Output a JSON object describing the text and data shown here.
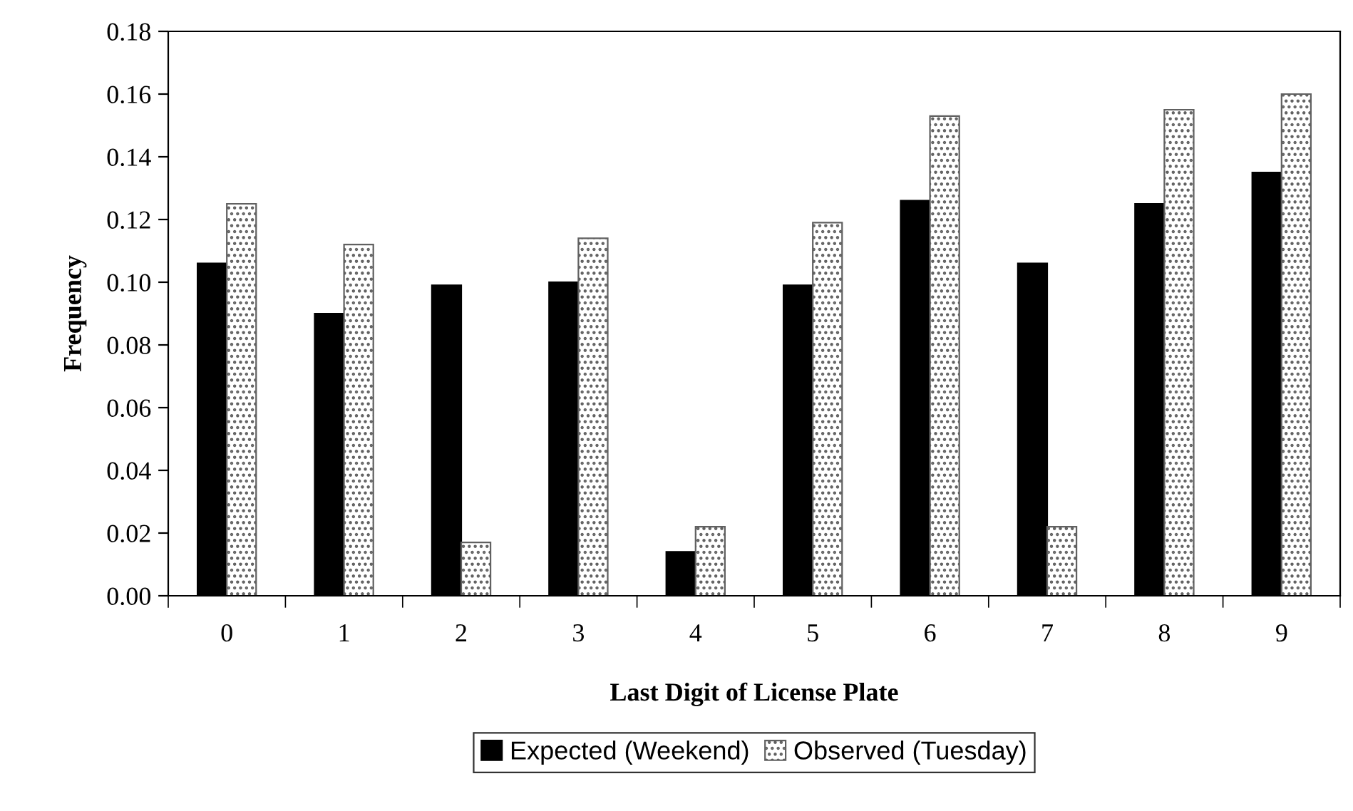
{
  "chart_data": {
    "type": "bar",
    "xlabel": "Last Digit of License Plate",
    "ylabel": "Frequency",
    "categories": [
      "0",
      "1",
      "2",
      "3",
      "4",
      "5",
      "6",
      "7",
      "8",
      "9"
    ],
    "series": [
      {
        "name": "Expected (Weekend)",
        "color": "#000000",
        "values": [
          0.106,
          0.09,
          0.099,
          0.1,
          0.014,
          0.099,
          0.126,
          0.106,
          0.125,
          0.135
        ]
      },
      {
        "name": "Observed (Tuesday)",
        "color": "#606060",
        "values": [
          0.125,
          0.112,
          0.017,
          0.114,
          0.022,
          0.119,
          0.153,
          0.022,
          0.155,
          0.16
        ]
      }
    ],
    "ylim": [
      0,
      0.18
    ],
    "yticks": [
      {
        "value": 0,
        "label": "0.00"
      },
      {
        "value": 0.02,
        "label": "0.02"
      },
      {
        "value": 0.04,
        "label": "0.04"
      },
      {
        "value": 0.06,
        "label": "0.06"
      },
      {
        "value": 0.08,
        "label": "0.08"
      },
      {
        "value": 0.1,
        "label": "0.10"
      },
      {
        "value": 0.12,
        "label": "0.12"
      },
      {
        "value": 0.14,
        "label": "0.14"
      },
      {
        "value": 0.16,
        "label": "0.16"
      },
      {
        "value": 0.18,
        "label": "0.18"
      }
    ],
    "grid": false,
    "legend": "bottom"
  }
}
